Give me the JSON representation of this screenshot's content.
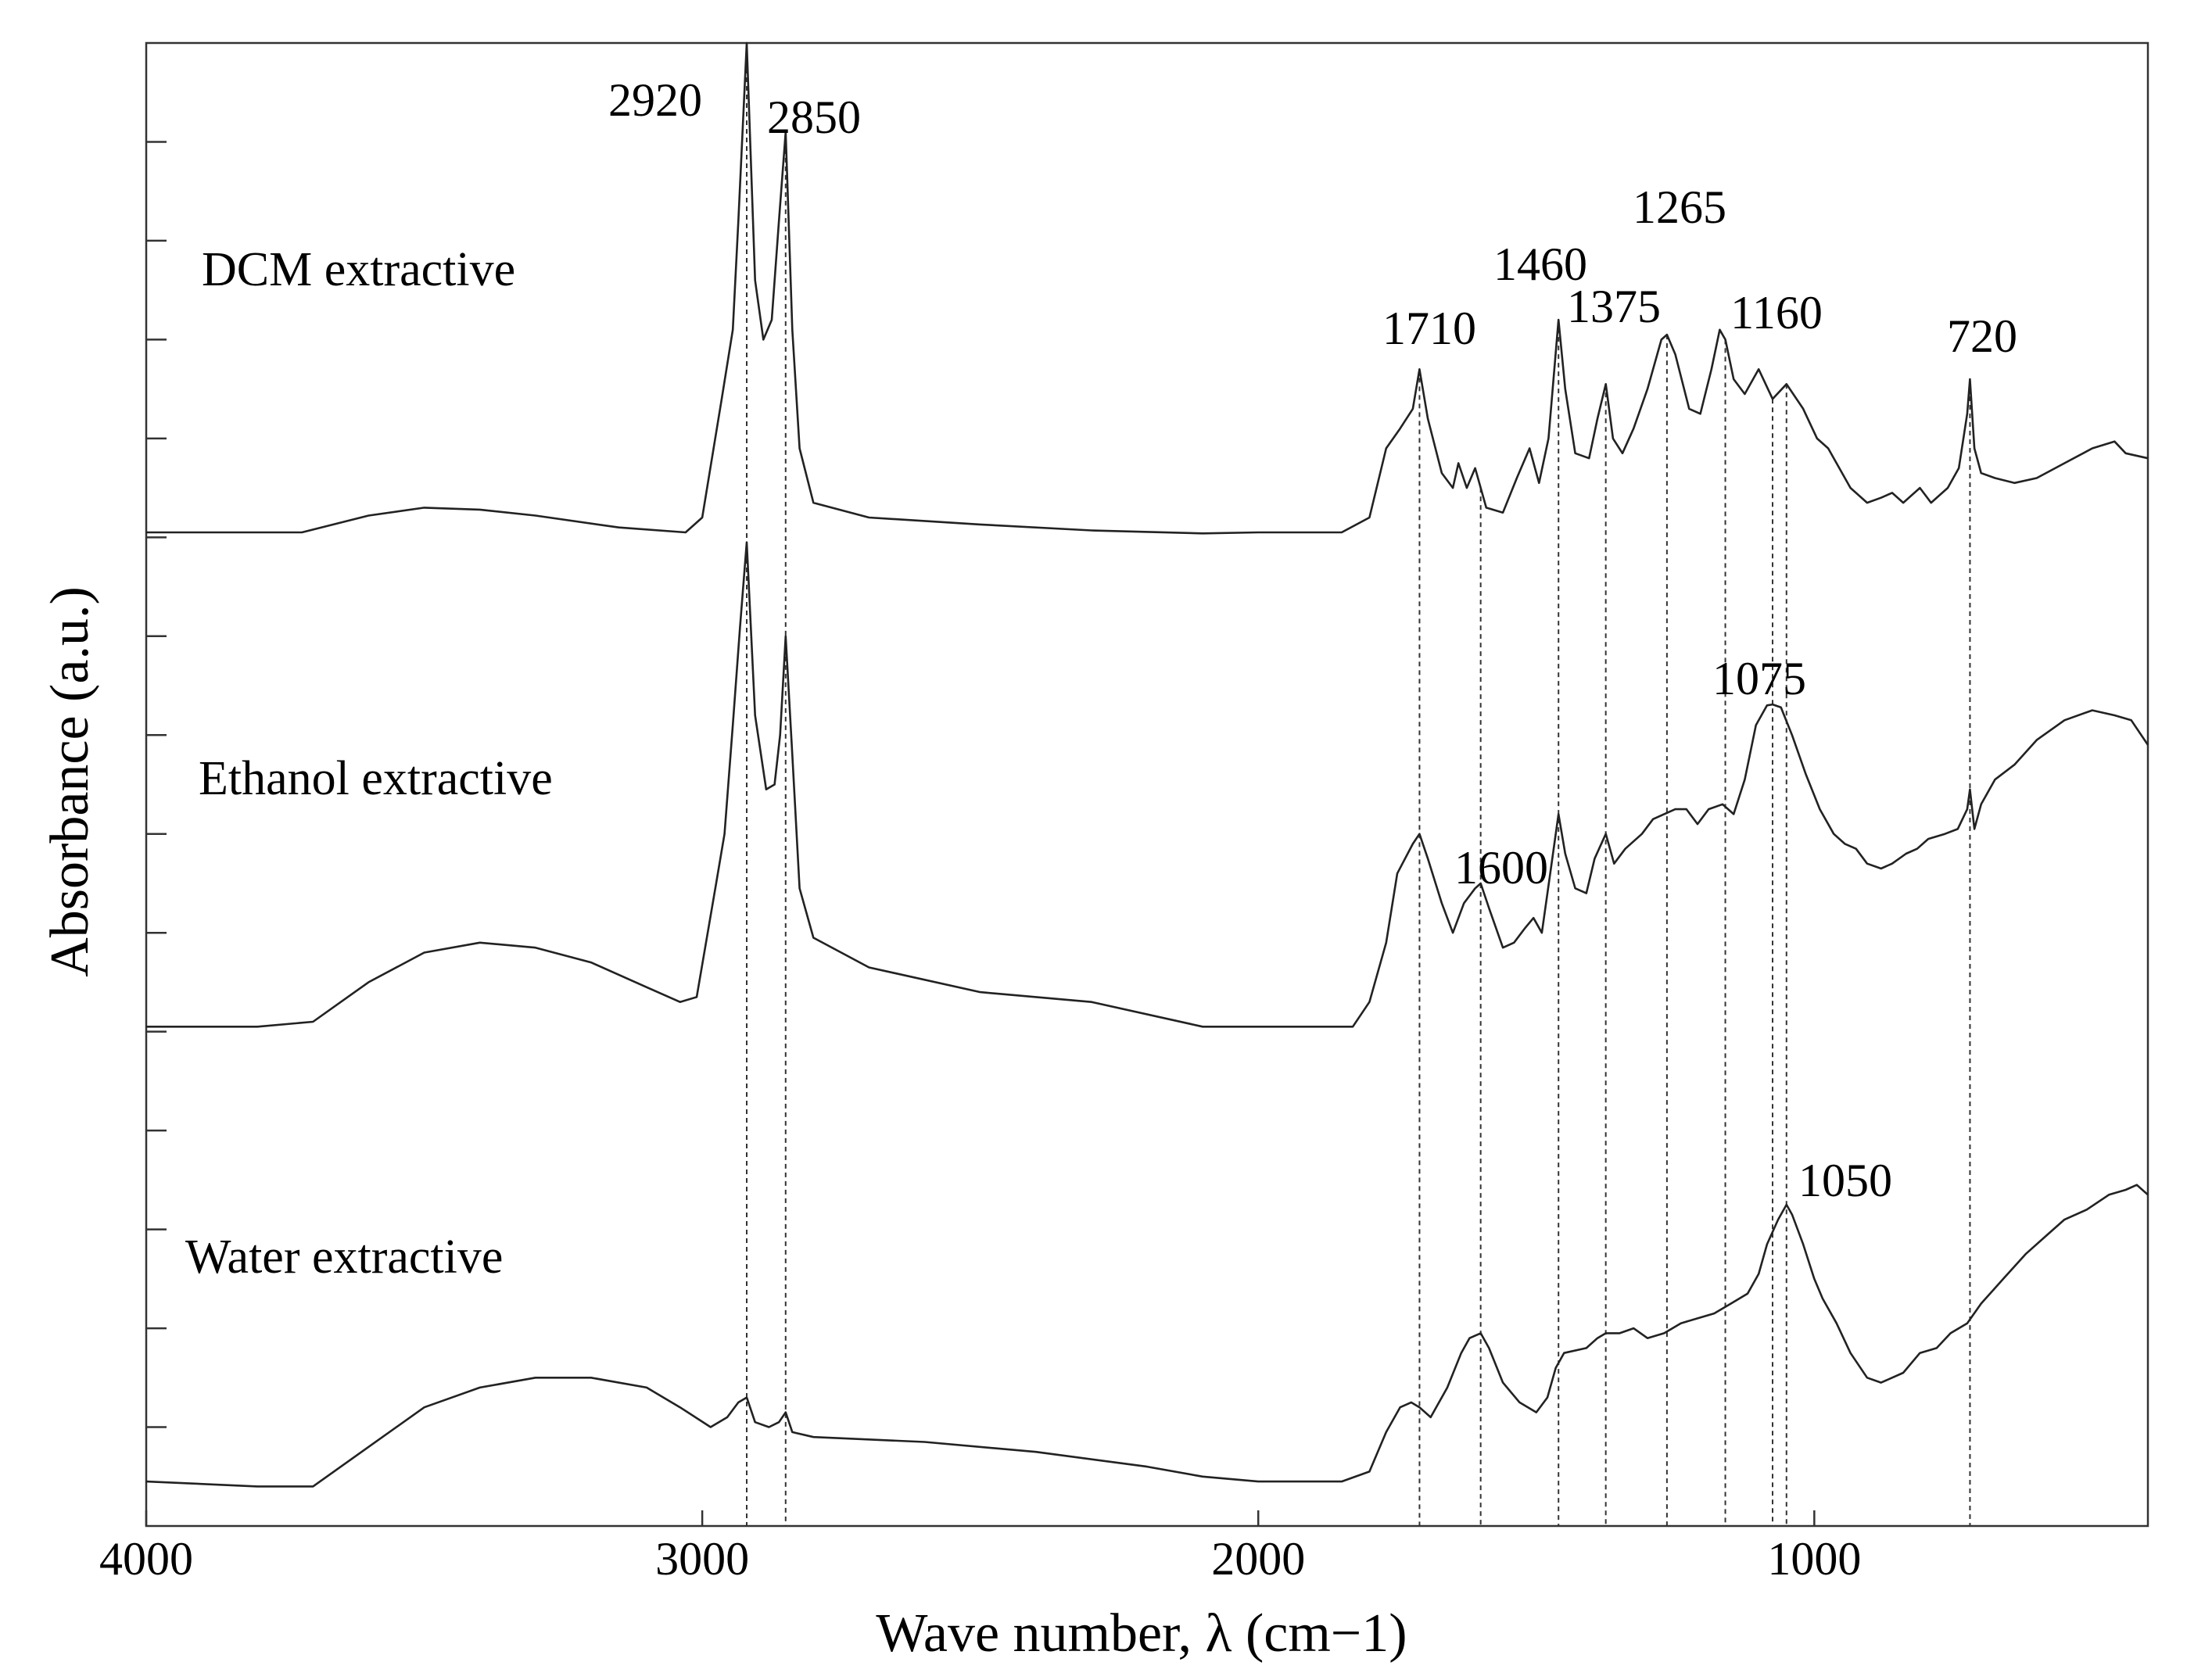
{
  "chart_data": {
    "type": "line",
    "title": "",
    "xlabel": "Wave number, λ (cm−1)",
    "ylabel": "Absorbance (a.u.)",
    "xlim": [
      4000,
      400
    ],
    "x_reversed": true,
    "ylim": [
      0,
      15
    ],
    "x_ticks": [
      4000,
      3000,
      2000,
      1000
    ],
    "x_tick_labels": [
      "4000",
      "3000",
      "2000",
      "1000"
    ],
    "y_tick_values": [
      1,
      2,
      3,
      4,
      5,
      6,
      7,
      8,
      9,
      10,
      11,
      12,
      13,
      14
    ],
    "y_tick_labels_shown": false,
    "series": [
      {
        "name": "DCM extractive",
        "points": [
          [
            4000,
            10.05
          ],
          [
            3800,
            10.05
          ],
          [
            3720,
            10.05
          ],
          [
            3600,
            10.22
          ],
          [
            3500,
            10.3
          ],
          [
            3400,
            10.28
          ],
          [
            3300,
            10.22
          ],
          [
            3150,
            10.1
          ],
          [
            3030,
            10.05
          ],
          [
            3000,
            10.2
          ],
          [
            2965,
            11.4
          ],
          [
            2945,
            12.1
          ],
          [
            2935,
            13.2
          ],
          [
            2920,
            15.0
          ],
          [
            2905,
            12.6
          ],
          [
            2890,
            12.0
          ],
          [
            2875,
            12.2
          ],
          [
            2862,
            13.2
          ],
          [
            2850,
            14.1
          ],
          [
            2838,
            12.1
          ],
          [
            2825,
            10.9
          ],
          [
            2800,
            10.35
          ],
          [
            2700,
            10.2
          ],
          [
            2500,
            10.13
          ],
          [
            2300,
            10.07
          ],
          [
            2100,
            10.04
          ],
          [
            2000,
            10.05
          ],
          [
            1850,
            10.05
          ],
          [
            1800,
            10.2
          ],
          [
            1770,
            10.9
          ],
          [
            1745,
            11.1
          ],
          [
            1722,
            11.3
          ],
          [
            1710,
            11.7
          ],
          [
            1695,
            11.2
          ],
          [
            1670,
            10.65
          ],
          [
            1650,
            10.5
          ],
          [
            1640,
            10.75
          ],
          [
            1625,
            10.5
          ],
          [
            1610,
            10.7
          ],
          [
            1590,
            10.3
          ],
          [
            1560,
            10.25
          ],
          [
            1535,
            10.6
          ],
          [
            1512,
            10.9
          ],
          [
            1495,
            10.55
          ],
          [
            1478,
            11.0
          ],
          [
            1460,
            12.2
          ],
          [
            1448,
            11.5
          ],
          [
            1430,
            10.85
          ],
          [
            1405,
            10.8
          ],
          [
            1390,
            11.2
          ],
          [
            1375,
            11.55
          ],
          [
            1362,
            11.0
          ],
          [
            1345,
            10.85
          ],
          [
            1325,
            11.1
          ],
          [
            1300,
            11.5
          ],
          [
            1275,
            12.0
          ],
          [
            1265,
            12.05
          ],
          [
            1250,
            11.85
          ],
          [
            1225,
            11.3
          ],
          [
            1205,
            11.25
          ],
          [
            1185,
            11.7
          ],
          [
            1170,
            12.1
          ],
          [
            1160,
            12.0
          ],
          [
            1145,
            11.6
          ],
          [
            1125,
            11.45
          ],
          [
            1100,
            11.7
          ],
          [
            1075,
            11.4
          ],
          [
            1050,
            11.55
          ],
          [
            1020,
            11.3
          ],
          [
            995,
            11.0
          ],
          [
            975,
            10.9
          ],
          [
            960,
            10.75
          ],
          [
            935,
            10.5
          ],
          [
            905,
            10.35
          ],
          [
            880,
            10.4
          ],
          [
            860,
            10.45
          ],
          [
            840,
            10.35
          ],
          [
            810,
            10.5
          ],
          [
            790,
            10.35
          ],
          [
            760,
            10.5
          ],
          [
            740,
            10.7
          ],
          [
            725,
            11.25
          ],
          [
            720,
            11.6
          ],
          [
            712,
            10.9
          ],
          [
            700,
            10.65
          ],
          [
            675,
            10.6
          ],
          [
            640,
            10.55
          ],
          [
            600,
            10.6
          ],
          [
            550,
            10.75
          ],
          [
            500,
            10.9
          ],
          [
            460,
            10.97
          ],
          [
            440,
            10.85
          ],
          [
            400,
            10.8
          ]
        ]
      },
      {
        "name": "Ethanol extractive",
        "points": [
          [
            4000,
            5.05
          ],
          [
            3800,
            5.05
          ],
          [
            3700,
            5.1
          ],
          [
            3600,
            5.5
          ],
          [
            3500,
            5.8
          ],
          [
            3400,
            5.9
          ],
          [
            3300,
            5.85
          ],
          [
            3200,
            5.7
          ],
          [
            3100,
            5.45
          ],
          [
            3040,
            5.3
          ],
          [
            3010,
            5.35
          ],
          [
            2975,
            6.5
          ],
          [
            2960,
            7.0
          ],
          [
            2945,
            8.1
          ],
          [
            2932,
            9.1
          ],
          [
            2920,
            9.95
          ],
          [
            2905,
            8.2
          ],
          [
            2885,
            7.45
          ],
          [
            2870,
            7.5
          ],
          [
            2860,
            8.0
          ],
          [
            2850,
            9.0
          ],
          [
            2838,
            7.8
          ],
          [
            2825,
            6.45
          ],
          [
            2800,
            5.95
          ],
          [
            2700,
            5.65
          ],
          [
            2500,
            5.4
          ],
          [
            2300,
            5.3
          ],
          [
            2100,
            5.05
          ],
          [
            2000,
            5.05
          ],
          [
            1900,
            5.05
          ],
          [
            1830,
            5.05
          ],
          [
            1800,
            5.3
          ],
          [
            1770,
            5.9
          ],
          [
            1750,
            6.6
          ],
          [
            1722,
            6.9
          ],
          [
            1710,
            7.0
          ],
          [
            1695,
            6.75
          ],
          [
            1670,
            6.3
          ],
          [
            1650,
            6.0
          ],
          [
            1630,
            6.3
          ],
          [
            1610,
            6.45
          ],
          [
            1600,
            6.5
          ],
          [
            1585,
            6.25
          ],
          [
            1560,
            5.85
          ],
          [
            1540,
            5.9
          ],
          [
            1520,
            6.05
          ],
          [
            1505,
            6.15
          ],
          [
            1490,
            6.0
          ],
          [
            1475,
            6.6
          ],
          [
            1460,
            7.2
          ],
          [
            1448,
            6.8
          ],
          [
            1430,
            6.45
          ],
          [
            1410,
            6.4
          ],
          [
            1395,
            6.75
          ],
          [
            1375,
            7.0
          ],
          [
            1360,
            6.7
          ],
          [
            1340,
            6.85
          ],
          [
            1310,
            7.0
          ],
          [
            1290,
            7.15
          ],
          [
            1270,
            7.2
          ],
          [
            1250,
            7.25
          ],
          [
            1230,
            7.25
          ],
          [
            1210,
            7.1
          ],
          [
            1190,
            7.25
          ],
          [
            1165,
            7.3
          ],
          [
            1145,
            7.2
          ],
          [
            1125,
            7.55
          ],
          [
            1105,
            8.1
          ],
          [
            1085,
            8.3
          ],
          [
            1075,
            8.31
          ],
          [
            1060,
            8.28
          ],
          [
            1040,
            8.0
          ],
          [
            1015,
            7.6
          ],
          [
            990,
            7.25
          ],
          [
            965,
            7.0
          ],
          [
            945,
            6.9
          ],
          [
            925,
            6.85
          ],
          [
            905,
            6.7
          ],
          [
            880,
            6.65
          ],
          [
            860,
            6.7
          ],
          [
            835,
            6.8
          ],
          [
            815,
            6.85
          ],
          [
            795,
            6.95
          ],
          [
            765,
            7.0
          ],
          [
            742,
            7.05
          ],
          [
            725,
            7.25
          ],
          [
            720,
            7.45
          ],
          [
            712,
            7.05
          ],
          [
            700,
            7.3
          ],
          [
            675,
            7.55
          ],
          [
            640,
            7.7
          ],
          [
            600,
            7.95
          ],
          [
            550,
            8.15
          ],
          [
            500,
            8.25
          ],
          [
            460,
            8.2
          ],
          [
            430,
            8.15
          ],
          [
            400,
            7.9
          ]
        ]
      },
      {
        "name": "Water extractive",
        "points": [
          [
            4000,
            0.45
          ],
          [
            3800,
            0.4
          ],
          [
            3700,
            0.4
          ],
          [
            3600,
            0.8
          ],
          [
            3500,
            1.2
          ],
          [
            3400,
            1.4
          ],
          [
            3300,
            1.5
          ],
          [
            3200,
            1.5
          ],
          [
            3100,
            1.4
          ],
          [
            3040,
            1.2
          ],
          [
            2985,
            1.0
          ],
          [
            2955,
            1.1
          ],
          [
            2935,
            1.25
          ],
          [
            2920,
            1.3
          ],
          [
            2905,
            1.05
          ],
          [
            2880,
            1.0
          ],
          [
            2862,
            1.05
          ],
          [
            2850,
            1.15
          ],
          [
            2838,
            0.95
          ],
          [
            2800,
            0.9
          ],
          [
            2600,
            0.85
          ],
          [
            2400,
            0.75
          ],
          [
            2200,
            0.6
          ],
          [
            2100,
            0.5
          ],
          [
            2000,
            0.45
          ],
          [
            1850,
            0.45
          ],
          [
            1800,
            0.55
          ],
          [
            1770,
            0.95
          ],
          [
            1745,
            1.2
          ],
          [
            1725,
            1.25
          ],
          [
            1710,
            1.2
          ],
          [
            1690,
            1.1
          ],
          [
            1660,
            1.4
          ],
          [
            1635,
            1.75
          ],
          [
            1620,
            1.9
          ],
          [
            1600,
            1.95
          ],
          [
            1585,
            1.8
          ],
          [
            1560,
            1.45
          ],
          [
            1530,
            1.25
          ],
          [
            1500,
            1.15
          ],
          [
            1480,
            1.3
          ],
          [
            1465,
            1.6
          ],
          [
            1450,
            1.75
          ],
          [
            1410,
            1.8
          ],
          [
            1390,
            1.9
          ],
          [
            1375,
            1.95
          ],
          [
            1350,
            1.95
          ],
          [
            1325,
            2.0
          ],
          [
            1300,
            1.9
          ],
          [
            1270,
            1.95
          ],
          [
            1240,
            2.05
          ],
          [
            1210,
            2.1
          ],
          [
            1180,
            2.15
          ],
          [
            1150,
            2.25
          ],
          [
            1120,
            2.35
          ],
          [
            1100,
            2.55
          ],
          [
            1085,
            2.85
          ],
          [
            1065,
            3.1
          ],
          [
            1050,
            3.25
          ],
          [
            1040,
            3.15
          ],
          [
            1020,
            2.85
          ],
          [
            1000,
            2.5
          ],
          [
            985,
            2.3
          ],
          [
            960,
            2.05
          ],
          [
            935,
            1.75
          ],
          [
            905,
            1.5
          ],
          [
            880,
            1.45
          ],
          [
            860,
            1.5
          ],
          [
            840,
            1.55
          ],
          [
            810,
            1.75
          ],
          [
            780,
            1.8
          ],
          [
            755,
            1.95
          ],
          [
            725,
            2.05
          ],
          [
            700,
            2.25
          ],
          [
            660,
            2.5
          ],
          [
            620,
            2.75
          ],
          [
            580,
            2.95
          ],
          [
            550,
            3.1
          ],
          [
            510,
            3.2
          ],
          [
            470,
            3.35
          ],
          [
            440,
            3.4
          ],
          [
            420,
            3.45
          ],
          [
            400,
            3.35
          ]
        ]
      }
    ],
    "peak_annotations": [
      {
        "label": "2920",
        "x": 2920
      },
      {
        "label": "2850",
        "x": 2850
      },
      {
        "label": "1710",
        "x": 1710
      },
      {
        "label": "1460",
        "x": 1460
      },
      {
        "label": "1375",
        "x": 1375
      },
      {
        "label": "1265",
        "x": 1265
      },
      {
        "label": "1160",
        "x": 1160
      },
      {
        "label": "720",
        "x": 720
      },
      {
        "label": "1075",
        "x": 1075
      },
      {
        "label": "1600",
        "x": 1600
      },
      {
        "label": "1050",
        "x": 1050
      }
    ]
  }
}
